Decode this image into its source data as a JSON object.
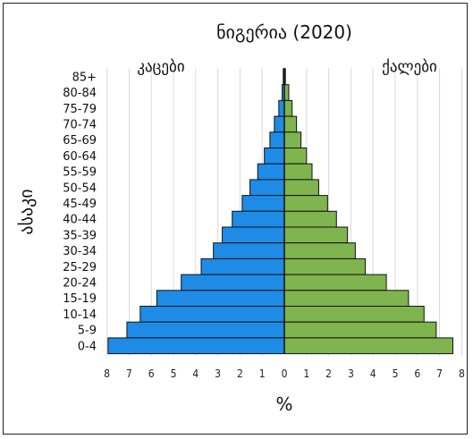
{
  "chart_data": {
    "type": "bar",
    "title": "ნიგერია (2020)",
    "left_label": "კაცები",
    "right_label": "ქალები",
    "ylabel": "ასაკი",
    "xlabel": "%",
    "categories": [
      "85+",
      "80-84",
      "75-79",
      "70-74",
      "65-69",
      "60-64",
      "55-59",
      "50-54",
      "45-49",
      "40-44",
      "35-39",
      "30-34",
      "25-29",
      "20-24",
      "15-19",
      "10-14",
      "5-9",
      "0-4"
    ],
    "series": [
      {
        "name": "კაცები",
        "color": "#1e8ce6",
        "values": [
          0.05,
          0.1,
          0.25,
          0.45,
          0.65,
          0.9,
          1.2,
          1.55,
          1.9,
          2.35,
          2.8,
          3.2,
          3.75,
          4.65,
          5.75,
          6.5,
          7.1,
          7.95
        ]
      },
      {
        "name": "ქალები",
        "color": "#7fb44e",
        "values": [
          0.05,
          0.2,
          0.35,
          0.55,
          0.75,
          1.0,
          1.25,
          1.55,
          1.95,
          2.35,
          2.85,
          3.2,
          3.65,
          4.6,
          5.6,
          6.3,
          6.85,
          7.6
        ]
      }
    ],
    "xlim": [
      -8,
      8
    ],
    "xticks": [
      "8",
      "7",
      "6",
      "5",
      "4",
      "3",
      "2",
      "1",
      "0",
      "1",
      "2",
      "3",
      "4",
      "5",
      "6",
      "7",
      "8"
    ],
    "grid": true
  }
}
